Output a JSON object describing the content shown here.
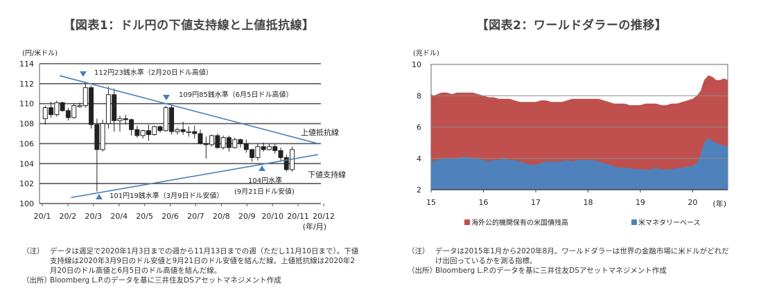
{
  "chart_data": [
    {
      "type": "candlestick",
      "title": "【図表1：ドル円の下値支持線と上値抵抗線】",
      "ylabel": "(円/米ドル)",
      "xlabel": "(年/月)",
      "ylim": [
        100,
        114
      ],
      "yticks": [
        100,
        102,
        104,
        106,
        108,
        110,
        112,
        114
      ],
      "xticks": [
        "20/1",
        "20/2",
        "20/3",
        "20/4",
        "20/5",
        "20/6",
        "20/7",
        "20/8",
        "20/9",
        "20/10",
        "20/11",
        "20/12"
      ],
      "x_range_weeks": [
        0,
        49
      ],
      "candles": [
        {
          "o": 108.5,
          "h": 109.8,
          "l": 107.9,
          "c": 109.6
        },
        {
          "o": 109.6,
          "h": 110.2,
          "l": 108.6,
          "c": 108.9
        },
        {
          "o": 108.9,
          "h": 110.3,
          "l": 108.7,
          "c": 110.1
        },
        {
          "o": 110.1,
          "h": 110.2,
          "l": 109.2,
          "c": 109.3
        },
        {
          "o": 109.3,
          "h": 109.6,
          "l": 108.3,
          "c": 108.6
        },
        {
          "o": 108.6,
          "h": 110.0,
          "l": 108.5,
          "c": 109.8
        },
        {
          "o": 109.8,
          "h": 110.1,
          "l": 109.6,
          "c": 109.8
        },
        {
          "o": 109.8,
          "h": 112.2,
          "l": 109.6,
          "c": 111.6
        },
        {
          "o": 111.6,
          "h": 111.8,
          "l": 107.5,
          "c": 107.9
        },
        {
          "o": 107.9,
          "h": 108.5,
          "l": 101.2,
          "c": 105.4
        },
        {
          "o": 105.4,
          "h": 108.4,
          "l": 105.2,
          "c": 108.0
        },
        {
          "o": 108.0,
          "h": 111.7,
          "l": 107.5,
          "c": 110.9
        },
        {
          "o": 110.9,
          "h": 111.5,
          "l": 107.2,
          "c": 108.3
        },
        {
          "o": 108.3,
          "h": 108.8,
          "l": 107.2,
          "c": 108.5
        },
        {
          "o": 108.5,
          "h": 108.9,
          "l": 107.9,
          "c": 108.4
        },
        {
          "o": 108.4,
          "h": 108.5,
          "l": 106.8,
          "c": 107.4
        },
        {
          "o": 107.4,
          "h": 107.8,
          "l": 106.6,
          "c": 106.8
        },
        {
          "o": 106.8,
          "h": 107.4,
          "l": 106.5,
          "c": 107.3
        },
        {
          "o": 107.3,
          "h": 107.9,
          "l": 106.3,
          "c": 106.9
        },
        {
          "o": 106.9,
          "h": 107.8,
          "l": 106.8,
          "c": 107.7
        },
        {
          "o": 107.7,
          "h": 107.8,
          "l": 107.1,
          "c": 107.3
        },
        {
          "o": 107.3,
          "h": 109.8,
          "l": 107.2,
          "c": 109.6
        },
        {
          "o": 109.6,
          "h": 109.8,
          "l": 106.9,
          "c": 107.2
        },
        {
          "o": 107.2,
          "h": 107.6,
          "l": 106.9,
          "c": 107.4
        },
        {
          "o": 107.4,
          "h": 108.2,
          "l": 106.9,
          "c": 107.2
        },
        {
          "o": 107.2,
          "h": 107.7,
          "l": 106.7,
          "c": 107.2
        },
        {
          "o": 107.2,
          "h": 107.8,
          "l": 106.5,
          "c": 107.0
        },
        {
          "o": 107.0,
          "h": 107.4,
          "l": 105.9,
          "c": 106.0
        },
        {
          "o": 106.0,
          "h": 106.7,
          "l": 104.5,
          "c": 105.9
        },
        {
          "o": 105.9,
          "h": 106.9,
          "l": 105.7,
          "c": 106.8
        },
        {
          "o": 106.8,
          "h": 107.0,
          "l": 105.5,
          "c": 105.6
        },
        {
          "o": 105.6,
          "h": 106.8,
          "l": 105.4,
          "c": 106.6
        },
        {
          "o": 106.6,
          "h": 106.8,
          "l": 105.2,
          "c": 105.6
        },
        {
          "o": 105.6,
          "h": 106.6,
          "l": 105.5,
          "c": 106.4
        },
        {
          "o": 106.4,
          "h": 106.5,
          "l": 105.6,
          "c": 106.0
        },
        {
          "o": 106.0,
          "h": 106.4,
          "l": 105.1,
          "c": 105.4
        },
        {
          "o": 105.4,
          "h": 105.5,
          "l": 104.2,
          "c": 104.6
        },
        {
          "o": 104.6,
          "h": 106.0,
          "l": 104.3,
          "c": 105.7
        },
        {
          "o": 105.7,
          "h": 106.1,
          "l": 105.2,
          "c": 105.4
        },
        {
          "o": 105.4,
          "h": 106.0,
          "l": 105.3,
          "c": 105.7
        },
        {
          "o": 105.7,
          "h": 106.0,
          "l": 105.0,
          "c": 105.3
        },
        {
          "o": 105.3,
          "h": 105.6,
          "l": 104.3,
          "c": 104.6
        },
        {
          "o": 104.6,
          "h": 104.9,
          "l": 103.2,
          "c": 103.4
        },
        {
          "o": 103.4,
          "h": 105.7,
          "l": 103.2,
          "c": 105.4
        }
      ],
      "resistance_line": {
        "label": "上値抵抗線",
        "from": {
          "week": 3.5,
          "value": 112.8
        },
        "to": {
          "week": 48.5,
          "value": 106.0
        }
      },
      "support_line": {
        "label": "下値支持線",
        "from": {
          "week": 5.5,
          "value": 100.6
        },
        "to": {
          "week": 48.5,
          "value": 104.9
        }
      },
      "annotations": [
        {
          "text": "112円23銭水準（2月20日ドル高値）",
          "week": 7.7,
          "value": 112.6,
          "marker": "down"
        },
        {
          "text": "109円85銭水準（6月5日ドル高値）",
          "week": 22.5,
          "value": 110.4,
          "marker": "down"
        },
        {
          "text": "101円19銭水準（3月9日ドル安値）",
          "week": 10.0,
          "value": 100.7,
          "marker": "up"
        },
        {
          "text": "104円水準",
          "week": 39.2,
          "value": 103.5,
          "marker": "up"
        },
        {
          "text": "(9月21日ドル安値)",
          "week": 39.2,
          "value": 103.5
        }
      ]
    },
    {
      "type": "area",
      "stacked": false,
      "title": "【図表2：ワールドダラーの推移】",
      "ylabel": "(兆ドル)",
      "xlabel": "(年)",
      "ylim": [
        2,
        10
      ],
      "yticks": [
        2,
        4,
        6,
        8,
        10
      ],
      "xticks": [
        "15",
        "16",
        "17",
        "18",
        "19",
        "20"
      ],
      "x_range": [
        2015.0,
        2020.67
      ],
      "series": [
        {
          "name": "海外公的機関保有の米国債残高",
          "color": "#c0504d",
          "x": [
            2015.0,
            2015.05,
            2015.12,
            2015.2,
            2015.3,
            2015.4,
            2015.5,
            2015.6,
            2015.7,
            2015.8,
            2015.9,
            2016.0,
            2016.1,
            2016.2,
            2016.3,
            2016.4,
            2016.5,
            2016.6,
            2016.7,
            2016.8,
            2016.9,
            2017.0,
            2017.1,
            2017.2,
            2017.3,
            2017.4,
            2017.5,
            2017.6,
            2017.7,
            2017.8,
            2017.9,
            2018.0,
            2018.1,
            2018.2,
            2018.3,
            2018.4,
            2018.5,
            2018.6,
            2018.7,
            2018.8,
            2018.9,
            2019.0,
            2019.1,
            2019.2,
            2019.3,
            2019.4,
            2019.5,
            2019.6,
            2019.7,
            2019.8,
            2019.9,
            2020.0,
            2020.08,
            2020.15,
            2020.22,
            2020.3,
            2020.38,
            2020.45,
            2020.52,
            2020.6,
            2020.67
          ],
          "values": [
            8.1,
            8.0,
            8.1,
            8.2,
            8.2,
            8.1,
            8.2,
            8.2,
            8.2,
            8.2,
            8.1,
            8.0,
            7.9,
            7.9,
            7.8,
            7.8,
            7.8,
            7.7,
            7.6,
            7.6,
            7.6,
            7.6,
            7.7,
            7.7,
            7.6,
            7.6,
            7.6,
            7.7,
            7.8,
            7.8,
            7.8,
            7.8,
            7.8,
            7.8,
            7.7,
            7.6,
            7.5,
            7.5,
            7.5,
            7.4,
            7.4,
            7.4,
            7.5,
            7.5,
            7.5,
            7.4,
            7.4,
            7.5,
            7.5,
            7.6,
            7.7,
            7.8,
            8.0,
            8.3,
            9.0,
            9.3,
            9.2,
            9.0,
            9.0,
            9.1,
            9.0
          ]
        },
        {
          "name": "米マネタリーベース",
          "color": "#4f81bd",
          "x": [
            2015.0,
            2015.05,
            2015.12,
            2015.2,
            2015.3,
            2015.4,
            2015.5,
            2015.6,
            2015.7,
            2015.8,
            2015.9,
            2016.0,
            2016.1,
            2016.2,
            2016.3,
            2016.4,
            2016.5,
            2016.6,
            2016.7,
            2016.8,
            2016.9,
            2017.0,
            2017.1,
            2017.2,
            2017.3,
            2017.4,
            2017.5,
            2017.6,
            2017.7,
            2017.8,
            2017.9,
            2018.0,
            2018.1,
            2018.2,
            2018.3,
            2018.4,
            2018.5,
            2018.6,
            2018.7,
            2018.8,
            2018.9,
            2019.0,
            2019.1,
            2019.2,
            2019.3,
            2019.4,
            2019.5,
            2019.6,
            2019.7,
            2019.8,
            2019.9,
            2020.0,
            2020.08,
            2020.15,
            2020.22,
            2020.3,
            2020.38,
            2020.45,
            2020.52,
            2020.6,
            2020.67
          ],
          "values": [
            4.0,
            3.8,
            3.9,
            4.0,
            4.0,
            4.0,
            4.0,
            4.1,
            4.1,
            4.0,
            4.0,
            3.9,
            3.8,
            3.9,
            3.9,
            4.0,
            3.9,
            3.9,
            3.8,
            3.7,
            3.6,
            3.6,
            3.7,
            3.8,
            3.8,
            3.8,
            3.8,
            3.9,
            3.8,
            3.9,
            3.9,
            3.9,
            3.9,
            3.8,
            3.7,
            3.6,
            3.5,
            3.4,
            3.4,
            3.4,
            3.3,
            3.3,
            3.3,
            3.3,
            3.4,
            3.3,
            3.3,
            3.3,
            3.4,
            3.4,
            3.5,
            3.5,
            3.7,
            4.2,
            5.0,
            5.3,
            5.1,
            5.0,
            4.9,
            4.8,
            4.8
          ]
        }
      ]
    }
  ],
  "notes1": [
    {
      "head": "（注）",
      "text": "データは週足で2020年1月3日までの週から11月13日までの週（ただし11月10日まで）。下値支持線は2020年3月9日のドル安値と9月21日のドル安値を結んだ線。上値抵抗線は2020年2月20日のドル高値と6月5日のドル高値を結んだ線。"
    },
    {
      "head": "（出所）",
      "text": "Bloomberg L.P.のデータを基に三井住友DSアセットマネジメント作成"
    }
  ],
  "notes2": [
    {
      "head": "（注）",
      "text": "データは2015年1月から2020年8月。ワールドダラーは世界の金融市場に米ドルがどれだけ出回っているかを測る指標。"
    },
    {
      "head": "（出所）",
      "text": "Bloomberg L.P.のデータを基に三井住友DSアセットマネジメント作成"
    }
  ]
}
